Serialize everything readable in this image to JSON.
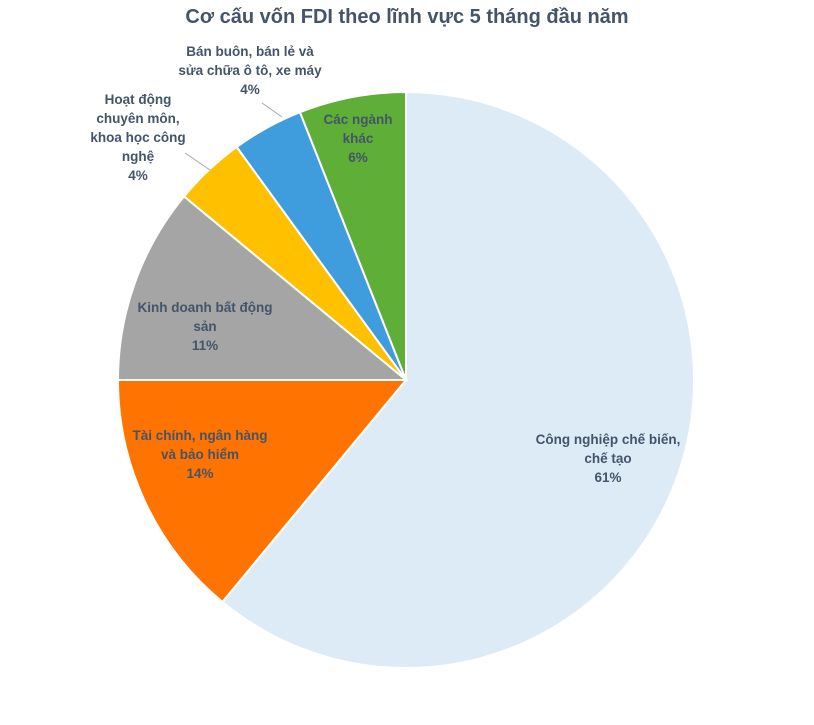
{
  "chart_data": {
    "type": "pie",
    "title": "Cơ cấu vốn FDI theo lĩnh vực 5 tháng đầu năm",
    "slices": [
      {
        "label_lines": [
          "Công nghiệp chế biến,",
          "chế tạo"
        ],
        "value_label": "61%",
        "value": 61,
        "color": "#ddebf7"
      },
      {
        "label_lines": [
          "Tài chính, ngân hàng",
          "và bảo hiểm"
        ],
        "value_label": "14%",
        "value": 14,
        "color": "#ff7300"
      },
      {
        "label_lines": [
          "Kinh doanh bất động",
          "sản"
        ],
        "value_label": "11%",
        "value": 11,
        "color": "#a5a5a5"
      },
      {
        "label_lines": [
          "Hoạt động",
          "chuyên môn,",
          "khoa học công",
          "nghệ"
        ],
        "value_label": "4%",
        "value": 4,
        "color": "#ffc000"
      },
      {
        "label_lines": [
          "Bán buôn, bán lẻ và",
          "sửa chữa ô tô, xe máy"
        ],
        "value_label": "4%",
        "value": 4,
        "color": "#3f9ddd"
      },
      {
        "label_lines": [
          "Các ngành",
          "khác"
        ],
        "value_label": "6%",
        "value": 6,
        "color": "#5fae37"
      }
    ]
  }
}
